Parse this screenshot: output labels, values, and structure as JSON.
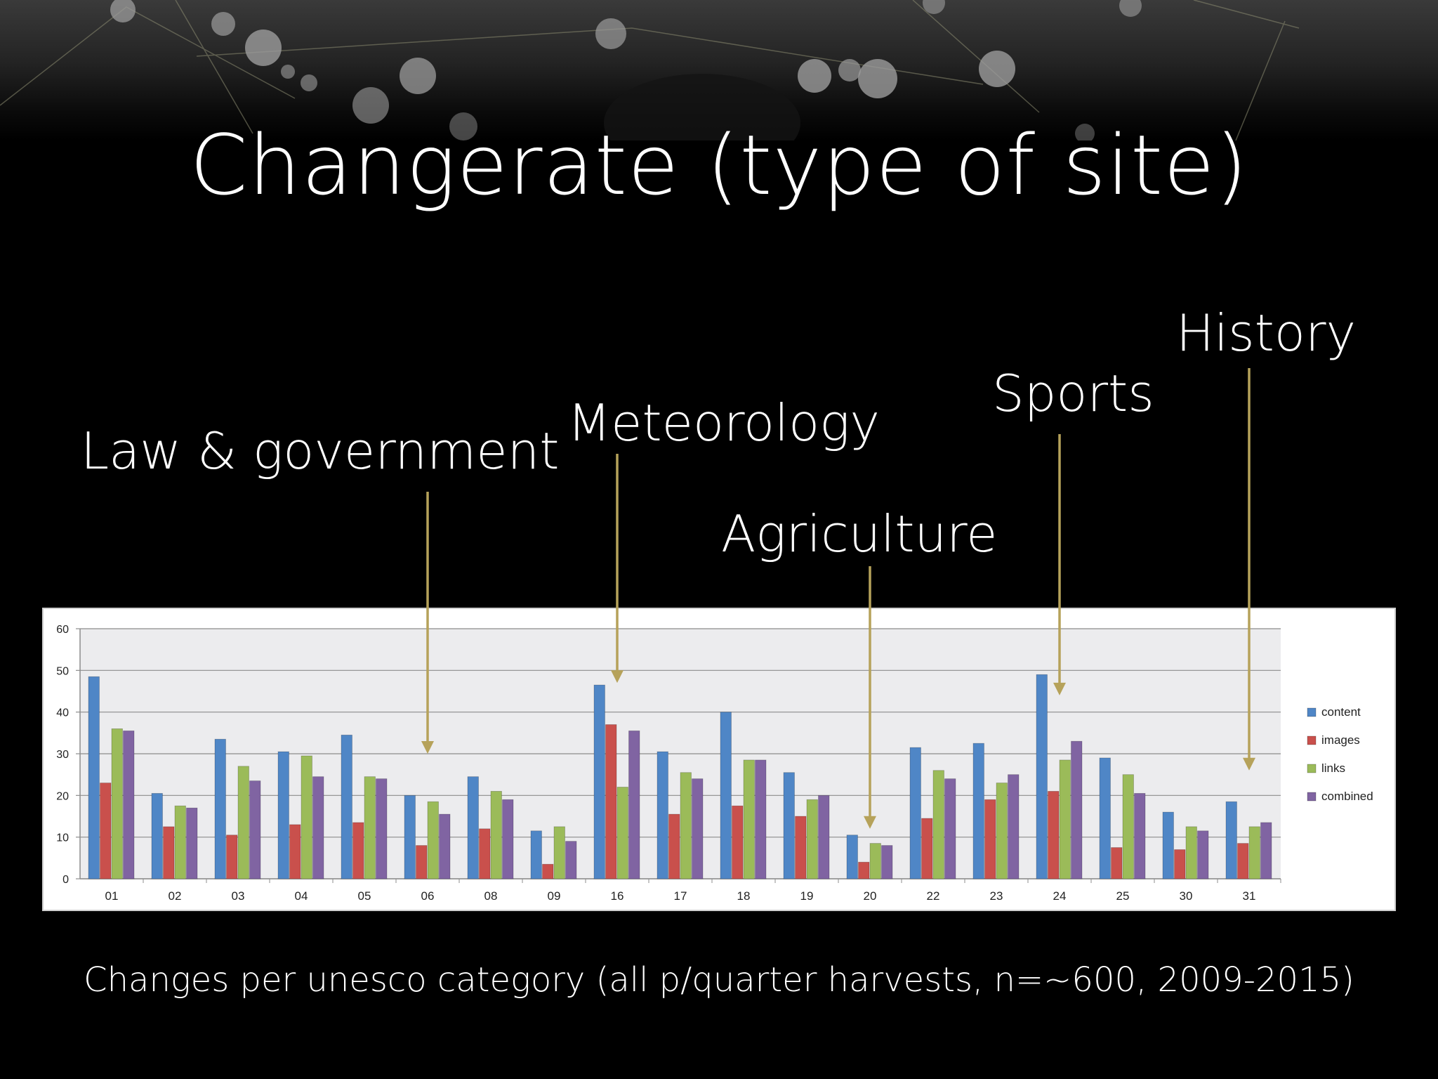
{
  "slide": {
    "title": "Changerate (type of site)",
    "caption": "Changes per unesco category (all p/quarter harvests, n=~600, 2009-2015)"
  },
  "annotations": [
    {
      "label": "Law & government",
      "target": "06"
    },
    {
      "label": "Meteorology",
      "target": "16"
    },
    {
      "label": "Agriculture",
      "target": "20"
    },
    {
      "label": "Sports",
      "target": "24"
    },
    {
      "label": "History",
      "target": "31"
    }
  ],
  "colors": {
    "arrow": "#b6a25a",
    "plot_bg": "#ececee",
    "content": "#4f86c6",
    "images": "#c9504c",
    "links": "#9bbb59",
    "combined": "#8064a2"
  },
  "chart_data": {
    "type": "bar",
    "categories": [
      "01",
      "02",
      "03",
      "04",
      "05",
      "06",
      "08",
      "09",
      "16",
      "17",
      "18",
      "19",
      "20",
      "22",
      "23",
      "24",
      "25",
      "30",
      "31"
    ],
    "series": [
      {
        "name": "content",
        "values": [
          48.5,
          20.5,
          33.5,
          30.5,
          34.5,
          20,
          24.5,
          11.5,
          46.5,
          30.5,
          40,
          25.5,
          10.5,
          31.5,
          32.5,
          49,
          29,
          16,
          18.5
        ]
      },
      {
        "name": "images",
        "values": [
          23,
          12.5,
          10.5,
          13,
          13.5,
          8,
          12,
          3.5,
          37,
          15.5,
          17.5,
          15,
          4,
          14.5,
          19,
          21,
          7.5,
          7,
          8.5
        ]
      },
      {
        "name": "links",
        "values": [
          36,
          17.5,
          27,
          29.5,
          24.5,
          18.5,
          21,
          12.5,
          22,
          25.5,
          28.5,
          19,
          8.5,
          26,
          23,
          28.5,
          25,
          12.5,
          12.5
        ]
      },
      {
        "name": "combined",
        "values": [
          35.5,
          17,
          23.5,
          24.5,
          24,
          15.5,
          19,
          9,
          35.5,
          24,
          28.5,
          20,
          8,
          24,
          25,
          33,
          20.5,
          11.5,
          13.5
        ]
      }
    ],
    "ylim": [
      0,
      60
    ],
    "yticks": [
      0,
      10,
      20,
      30,
      40,
      50,
      60
    ],
    "grid": true,
    "legend": "right"
  }
}
